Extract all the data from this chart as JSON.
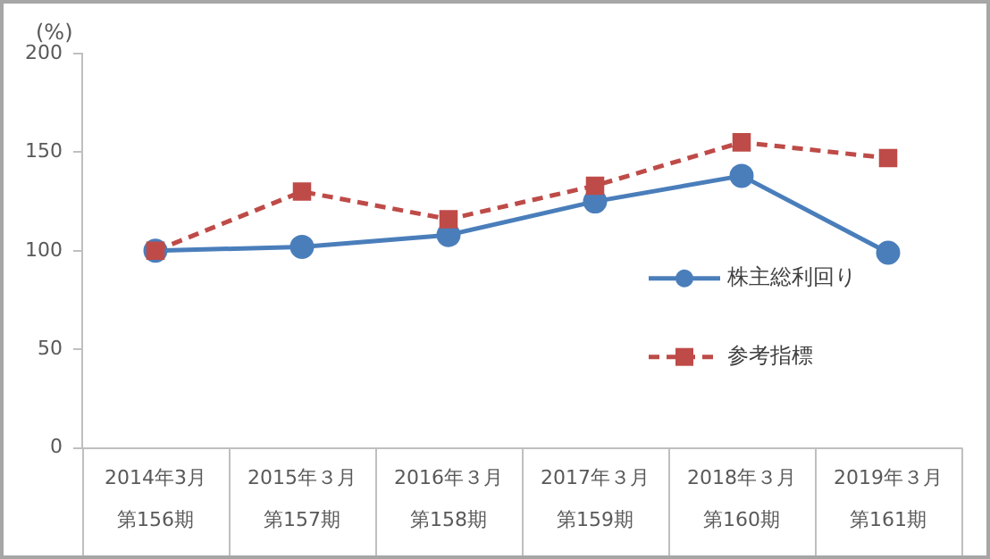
{
  "chart_data": {
    "type": "line",
    "ylabel": "(%)",
    "categories": [
      "2014年3月第156期",
      "2015年３月第157期",
      "2016年３月第158期",
      "2017年３月第159期",
      "2018年３月第160期",
      "2019年３月第161期"
    ],
    "series": [
      {
        "name": "株主総利回り",
        "color": "#4a7ebb",
        "marker": "circle",
        "line_style": "solid",
        "values": [
          100,
          102,
          108,
          125,
          138,
          99
        ]
      },
      {
        "name": "参考指標",
        "color": "#be4b48",
        "marker": "square",
        "line_style": "dashed",
        "values": [
          100,
          130,
          116,
          133,
          155,
          147
        ]
      }
    ],
    "ylim": [
      0,
      200
    ],
    "yticks": [
      0,
      50,
      100,
      150,
      200
    ],
    "grid": false,
    "legend": "right"
  }
}
